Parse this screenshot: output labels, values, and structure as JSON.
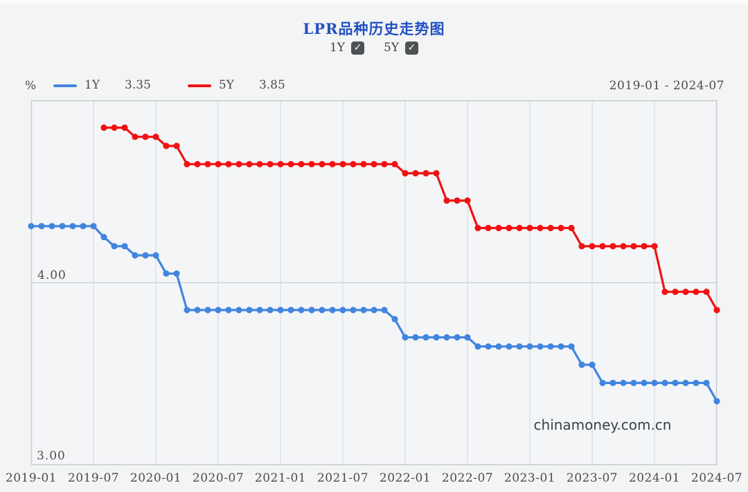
{
  "header": {
    "title": "LPR品种历史走势图"
  },
  "controls": {
    "check_glyph": "✓",
    "items": [
      {
        "label": "1Y",
        "checked": true
      },
      {
        "label": "5Y",
        "checked": true
      }
    ]
  },
  "legend": {
    "unit": "%",
    "items": [
      {
        "name": "1Y",
        "value": "3.35",
        "color": "#4285df"
      },
      {
        "name": "5Y",
        "value": "3.85",
        "color": "#f01212"
      }
    ],
    "date_range": "2019-01 - 2024-07"
  },
  "watermark": "chinamoney.com.cn",
  "chart_data": {
    "type": "line",
    "title": "LPR品种历史走势图",
    "x_tick_labels": [
      "2019-01",
      "2019-07",
      "2020-01",
      "2020-07",
      "2021-01",
      "2021-07",
      "2022-01",
      "2022-07",
      "2023-01",
      "2023-07",
      "2024-01",
      "2024-07"
    ],
    "x_months_total": 67,
    "x_gridline_interval_months": 6,
    "ylim": [
      3.0,
      5.0
    ],
    "y_gridlines": [
      4.0
    ],
    "y_axis_labels": {
      "mid": "4.00",
      "bottom": "3.00"
    },
    "y_axis_unit": "%",
    "legend_position": "top",
    "series": [
      {
        "name": "1Y",
        "color": "#4285df",
        "start_month": "2019-01",
        "start_index": 0,
        "latest_value": 3.35,
        "values": [
          4.31,
          4.31,
          4.31,
          4.31,
          4.31,
          4.31,
          4.31,
          4.25,
          4.2,
          4.2,
          4.15,
          4.15,
          4.15,
          4.05,
          4.05,
          3.85,
          3.85,
          3.85,
          3.85,
          3.85,
          3.85,
          3.85,
          3.85,
          3.85,
          3.85,
          3.85,
          3.85,
          3.85,
          3.85,
          3.85,
          3.85,
          3.85,
          3.85,
          3.85,
          3.85,
          3.8,
          3.7,
          3.7,
          3.7,
          3.7,
          3.7,
          3.7,
          3.7,
          3.65,
          3.65,
          3.65,
          3.65,
          3.65,
          3.65,
          3.65,
          3.65,
          3.65,
          3.65,
          3.55,
          3.55,
          3.45,
          3.45,
          3.45,
          3.45,
          3.45,
          3.45,
          3.45,
          3.45,
          3.45,
          3.45,
          3.45,
          3.35
        ]
      },
      {
        "name": "5Y",
        "color": "#f01212",
        "start_month": "2019-08",
        "start_index": 7,
        "latest_value": 3.85,
        "values": [
          4.85,
          4.85,
          4.85,
          4.8,
          4.8,
          4.8,
          4.75,
          4.75,
          4.65,
          4.65,
          4.65,
          4.65,
          4.65,
          4.65,
          4.65,
          4.65,
          4.65,
          4.65,
          4.65,
          4.65,
          4.65,
          4.65,
          4.65,
          4.65,
          4.65,
          4.65,
          4.65,
          4.65,
          4.65,
          4.6,
          4.6,
          4.6,
          4.6,
          4.45,
          4.45,
          4.45,
          4.3,
          4.3,
          4.3,
          4.3,
          4.3,
          4.3,
          4.3,
          4.3,
          4.3,
          4.3,
          4.2,
          4.2,
          4.2,
          4.2,
          4.2,
          4.2,
          4.2,
          4.2,
          3.95,
          3.95,
          3.95,
          3.95,
          3.95,
          3.85
        ]
      }
    ]
  }
}
